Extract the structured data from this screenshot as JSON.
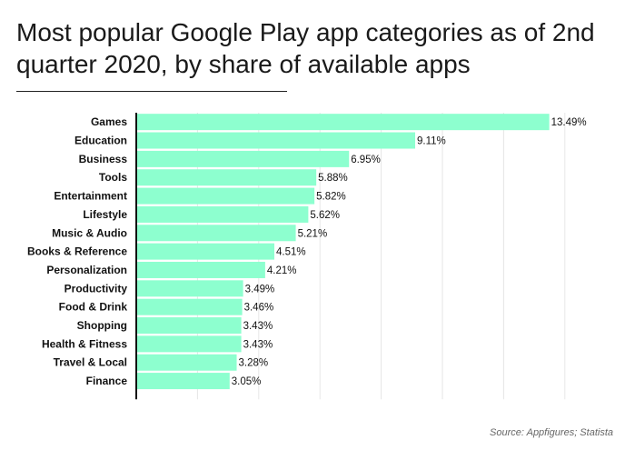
{
  "title": "Most popular Google Play app categories as of 2nd quarter 2020, by share of available apps",
  "source": "Source: Appfigures; Statista",
  "colors": {
    "bar": "#8dffcf",
    "axis": "#111111",
    "grid": "#e6e6e6"
  },
  "chart_data": {
    "type": "bar",
    "orientation": "horizontal",
    "categories": [
      "Games",
      "Education",
      "Business",
      "Tools",
      "Entertainment",
      "Lifestyle",
      "Music & Audio",
      "Books & Reference",
      "Personalization",
      "Productivity",
      "Food & Drink",
      "Shopping",
      "Health & Fitness",
      "Travel & Local",
      "Finance"
    ],
    "values": [
      13.49,
      9.11,
      6.95,
      5.88,
      5.82,
      5.62,
      5.21,
      4.51,
      4.21,
      3.49,
      3.46,
      3.43,
      3.43,
      3.28,
      3.05
    ],
    "labels": [
      "13.49%",
      "9.11%",
      "6.95%",
      "5.88%",
      "5.82%",
      "5.62%",
      "5.21%",
      "4.51%",
      "4.21%",
      "3.49%",
      "3.46%",
      "3.43%",
      "3.43%",
      "3.28%",
      "3.05%"
    ],
    "xlim": [
      0,
      14
    ],
    "grid": true,
    "legend": "none"
  }
}
